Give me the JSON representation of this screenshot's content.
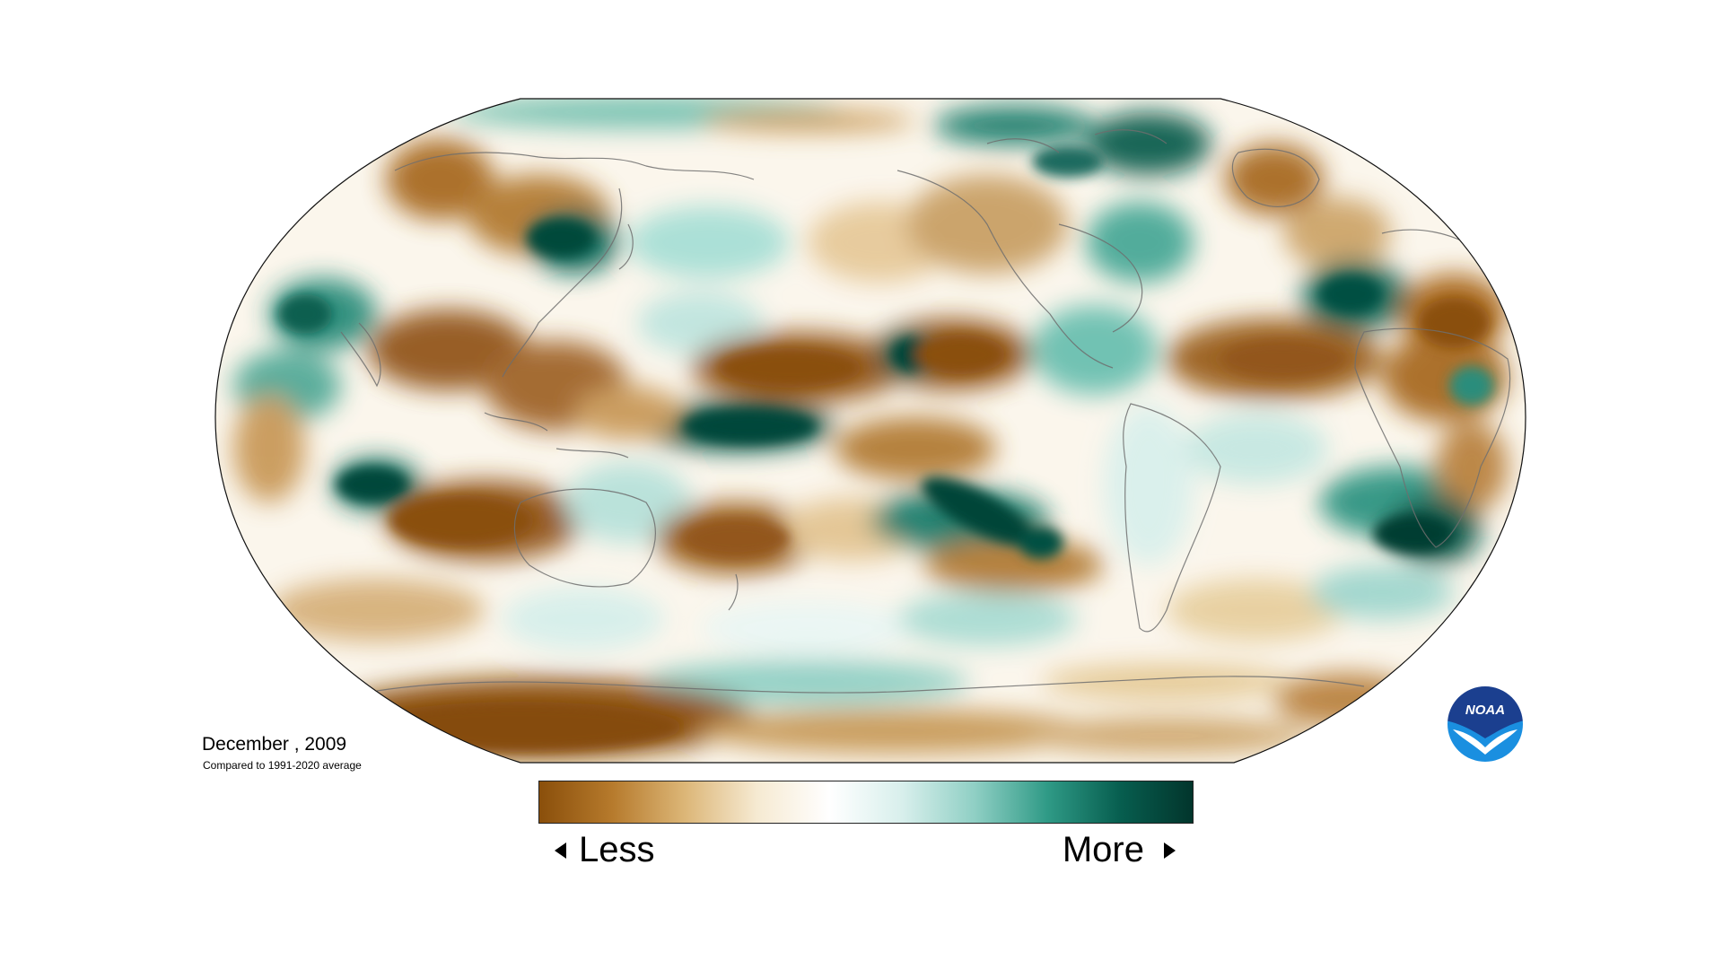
{
  "title": {
    "date": "December , 2009",
    "baseline": "Compared to 1991-2020 average"
  },
  "legend": {
    "less_label": "Less",
    "more_label": "More",
    "colors": [
      "#8a4f0b",
      "#b67a2c",
      "#dcb677",
      "#f6ead2",
      "#ffffff",
      "#d8efec",
      "#8fcfc4",
      "#2f9a86",
      "#075e4f",
      "#02352c"
    ]
  },
  "logo": {
    "text": "NOAA",
    "colors": {
      "top": "#1b3f8f",
      "bottom": "#1a8fe0",
      "bird": "#ffffff"
    }
  },
  "map": {
    "projection": "robinson",
    "palette": {
      "dry": "#8a4f0b",
      "wet": "#02352c",
      "neutral": "#ffffff"
    }
  }
}
